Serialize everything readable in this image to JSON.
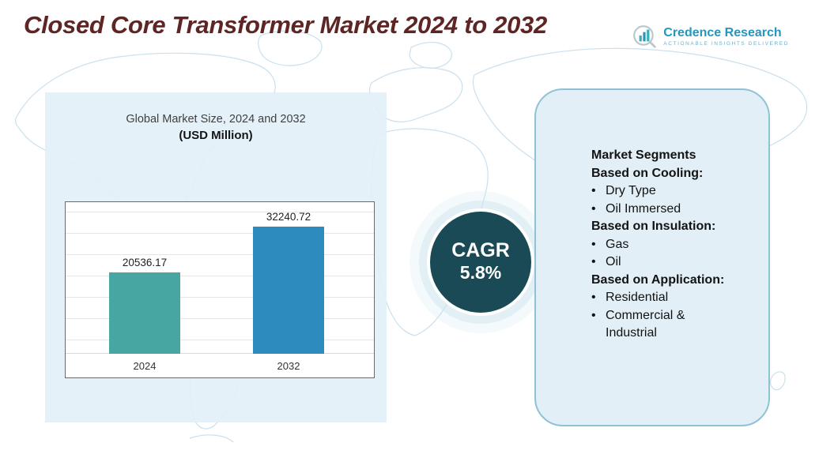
{
  "header": {
    "title": "Closed Core Transformer Market 2024 to 2032",
    "logo": {
      "name": "Credence Research",
      "tagline": "Actionable Insights Delivered"
    }
  },
  "chart_panel": {
    "title": "Global Market Size, 2024 and 2032",
    "subtitle": "(USD Million)"
  },
  "chart_data": {
    "type": "bar",
    "title": "Global Market Size, 2024 and 2032",
    "subtitle": "(USD Million)",
    "categories": [
      "2024",
      "2032"
    ],
    "values": [
      20536.17,
      32240.72
    ],
    "value_labels": [
      "20536.17",
      "32240.72"
    ],
    "xlabel": "",
    "ylabel": "",
    "ylim": [
      0,
      40000
    ],
    "grid": true,
    "legend": "none",
    "bar_colors": [
      "#47a5a2",
      "#2e8bbd"
    ]
  },
  "cagr": {
    "label": "CAGR",
    "value": "5.8%"
  },
  "segments": {
    "title": "Market Segments",
    "groups": [
      {
        "heading": "Based on Cooling:",
        "items": [
          "Dry Type",
          "Oil Immersed"
        ]
      },
      {
        "heading": "Based on Insulation:",
        "items": [
          "Gas",
          "Oil"
        ]
      },
      {
        "heading": "Based on Application:",
        "items": [
          "Residential",
          "Commercial & Industrial"
        ]
      }
    ]
  },
  "colors": {
    "title_text": "#5f2424",
    "panel_background": "#e2eff6",
    "panel_border": "#8fc2d6",
    "cagr_circle": "#1a4a55",
    "bar_2024": "#47a5a2",
    "bar_2032": "#2e8bbd",
    "map_lines": "#c9e0ee",
    "logo_teal": "#2596be"
  }
}
